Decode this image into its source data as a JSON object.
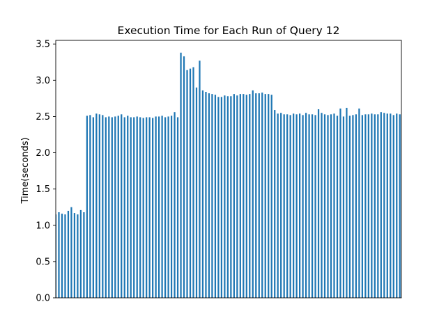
{
  "chart_data": {
    "type": "bar",
    "title": "Execution Time for Each Run of Query 12",
    "xlabel": "",
    "ylabel": "Time(seconds)",
    "ylim": [
      0,
      3.55
    ],
    "yticks": [
      "0.0",
      "0.5",
      "1.0",
      "1.5",
      "2.0",
      "2.5",
      "3.0",
      "3.5"
    ],
    "x_tick_labels_visible": false,
    "grid": false,
    "legend": "none",
    "bar_color": "#1f77b4",
    "values": [
      1.15,
      1.18,
      1.16,
      1.15,
      1.2,
      1.25,
      1.17,
      1.15,
      1.21,
      1.18,
      2.51,
      2.52,
      2.49,
      2.54,
      2.53,
      2.52,
      2.49,
      2.5,
      2.49,
      2.5,
      2.51,
      2.53,
      2.49,
      2.51,
      2.49,
      2.49,
      2.5,
      2.49,
      2.48,
      2.49,
      2.49,
      2.48,
      2.5,
      2.5,
      2.51,
      2.49,
      2.5,
      2.51,
      2.56,
      2.49,
      3.38,
      3.33,
      3.14,
      3.16,
      3.18,
      2.9,
      3.27,
      2.86,
      2.84,
      2.82,
      2.81,
      2.8,
      2.77,
      2.77,
      2.79,
      2.78,
      2.78,
      2.81,
      2.79,
      2.81,
      2.81,
      2.8,
      2.81,
      2.86,
      2.82,
      2.82,
      2.83,
      2.81,
      2.81,
      2.8,
      2.59,
      2.54,
      2.55,
      2.53,
      2.53,
      2.52,
      2.54,
      2.53,
      2.54,
      2.52,
      2.55,
      2.53,
      2.53,
      2.52,
      2.6,
      2.55,
      2.53,
      2.52,
      2.53,
      2.54,
      2.51,
      2.61,
      2.5,
      2.62,
      2.51,
      2.52,
      2.53,
      2.61,
      2.52,
      2.53,
      2.53,
      2.54,
      2.53,
      2.53,
      2.56,
      2.55,
      2.54,
      2.54,
      2.52,
      2.54,
      2.53
    ]
  }
}
